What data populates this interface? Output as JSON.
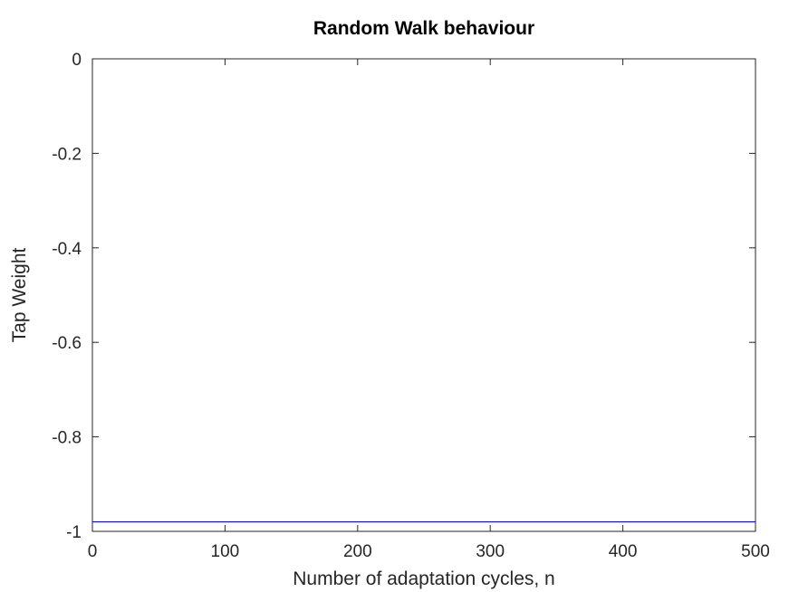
{
  "chart_data": {
    "type": "line",
    "title": "Random Walk behaviour",
    "xlabel": "Number of adaptation cycles, n",
    "ylabel": "Tap Weight",
    "xlim": [
      0,
      500
    ],
    "ylim": [
      -1,
      0
    ],
    "xticks": [
      "0",
      "100",
      "200",
      "300",
      "400",
      "500"
    ],
    "yticks": [
      "0",
      "-0.2",
      "-0.4",
      "-0.6",
      "-0.8",
      "-1"
    ],
    "grid": false,
    "series": [
      {
        "color": "#0000cc",
        "x": [
          0,
          500
        ],
        "y": [
          -0.98,
          -0.98
        ]
      }
    ]
  }
}
